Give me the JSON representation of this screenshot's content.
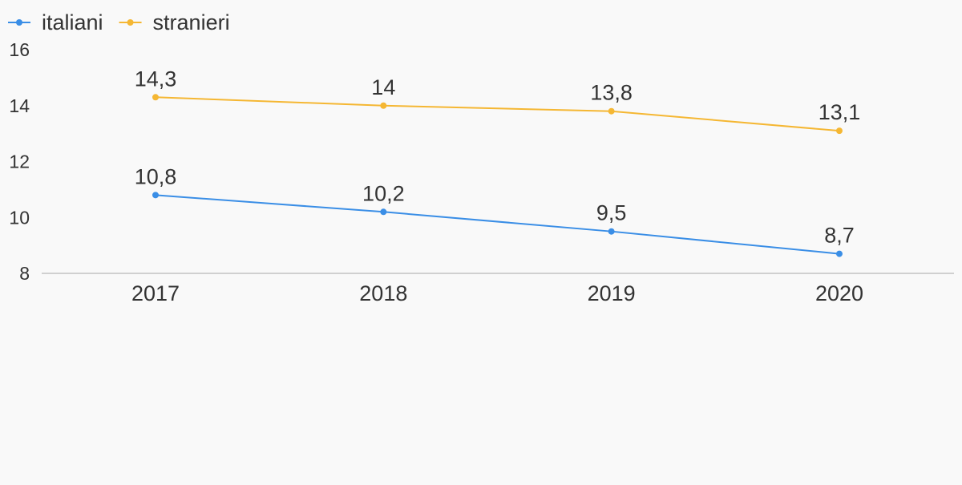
{
  "chart_data": {
    "type": "line",
    "categories": [
      "2017",
      "2018",
      "2019",
      "2020"
    ],
    "series": [
      {
        "name": "italiani",
        "color": "#3a8ee6",
        "values": [
          10.8,
          10.2,
          9.5,
          8.7
        ],
        "labels": [
          "10,8",
          "10,2",
          "9,5",
          "8,7"
        ]
      },
      {
        "name": "stranieri",
        "color": "#f5b733",
        "values": [
          14.3,
          14,
          13.8,
          13.1
        ],
        "labels": [
          "14,3",
          "14",
          "13,8",
          "13,1"
        ]
      }
    ],
    "ylim": [
      8,
      16
    ],
    "yticks": [
      "8",
      "10",
      "12",
      "14",
      "16"
    ],
    "ytick_values": [
      8,
      10,
      12,
      14,
      16
    ],
    "legend": "top-left",
    "grid": false,
    "axis_color": "#d0d0d0",
    "background": "#f9f9f9"
  }
}
